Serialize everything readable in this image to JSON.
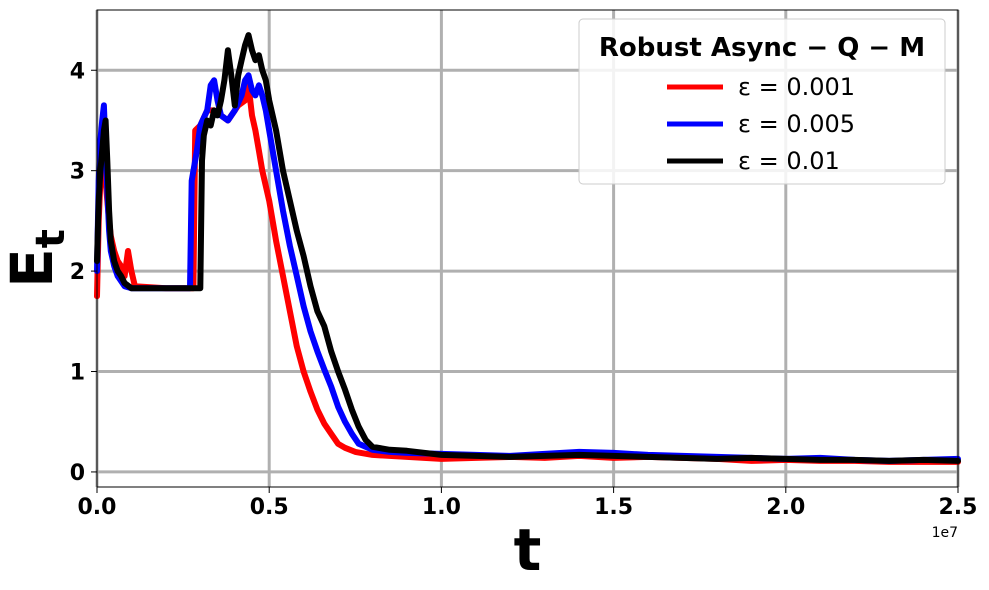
{
  "chart_data": {
    "type": "line",
    "xlabel": "t",
    "ylabel": "E",
    "ylabel_subscript": "t",
    "x_offset_label": "1e7",
    "xlim": [
      0,
      2.5
    ],
    "ylim": [
      -0.15,
      4.6
    ],
    "xticks": [
      0.0,
      0.5,
      1.0,
      1.5,
      2.0,
      2.5
    ],
    "xtick_labels": [
      "0.0",
      "0.5",
      "1.0",
      "1.5",
      "2.0",
      "2.5"
    ],
    "yticks": [
      0,
      1,
      2,
      3,
      4
    ],
    "ytick_labels": [
      "0",
      "1",
      "2",
      "3",
      "4"
    ],
    "grid": true,
    "legend_title": "Robust   Async − Q − M",
    "legend_position": "top-right",
    "series": [
      {
        "name": "ε = 0.001",
        "color": "#ff0000",
        "points": [
          [
            0.0,
            1.75
          ],
          [
            0.005,
            2.5
          ],
          [
            0.01,
            2.9
          ],
          [
            0.015,
            3.2
          ],
          [
            0.02,
            3.1
          ],
          [
            0.025,
            2.9
          ],
          [
            0.03,
            2.7
          ],
          [
            0.035,
            2.5
          ],
          [
            0.04,
            2.35
          ],
          [
            0.05,
            2.2
          ],
          [
            0.06,
            2.1
          ],
          [
            0.07,
            2.05
          ],
          [
            0.08,
            1.95
          ],
          [
            0.09,
            2.2
          ],
          [
            0.1,
            2.0
          ],
          [
            0.11,
            1.85
          ],
          [
            0.2,
            1.83
          ],
          [
            0.28,
            1.83
          ],
          [
            0.285,
            3.4
          ],
          [
            0.3,
            3.45
          ],
          [
            0.32,
            3.6
          ],
          [
            0.34,
            3.6
          ],
          [
            0.36,
            3.55
          ],
          [
            0.38,
            3.5
          ],
          [
            0.4,
            3.6
          ],
          [
            0.41,
            3.65
          ],
          [
            0.43,
            3.7
          ],
          [
            0.44,
            3.85
          ],
          [
            0.45,
            3.55
          ],
          [
            0.46,
            3.4
          ],
          [
            0.47,
            3.2
          ],
          [
            0.48,
            3.0
          ],
          [
            0.5,
            2.7
          ],
          [
            0.52,
            2.3
          ],
          [
            0.54,
            1.95
          ],
          [
            0.56,
            1.6
          ],
          [
            0.58,
            1.25
          ],
          [
            0.6,
            1.0
          ],
          [
            0.62,
            0.8
          ],
          [
            0.64,
            0.62
          ],
          [
            0.66,
            0.48
          ],
          [
            0.68,
            0.38
          ],
          [
            0.7,
            0.28
          ],
          [
            0.72,
            0.24
          ],
          [
            0.75,
            0.2
          ],
          [
            0.8,
            0.17
          ],
          [
            0.85,
            0.16
          ],
          [
            0.9,
            0.15
          ],
          [
            1.0,
            0.13
          ],
          [
            1.1,
            0.14
          ],
          [
            1.2,
            0.15
          ],
          [
            1.3,
            0.14
          ],
          [
            1.4,
            0.16
          ],
          [
            1.5,
            0.14
          ],
          [
            1.6,
            0.15
          ],
          [
            1.7,
            0.14
          ],
          [
            1.8,
            0.13
          ],
          [
            1.9,
            0.11
          ],
          [
            2.0,
            0.12
          ],
          [
            2.1,
            0.11
          ],
          [
            2.2,
            0.11
          ],
          [
            2.3,
            0.1
          ],
          [
            2.4,
            0.1
          ],
          [
            2.5,
            0.1
          ]
        ]
      },
      {
        "name": "ε = 0.005",
        "color": "#0000ff",
        "points": [
          [
            0.0,
            2.0
          ],
          [
            0.005,
            2.9
          ],
          [
            0.01,
            3.3
          ],
          [
            0.015,
            3.5
          ],
          [
            0.02,
            3.65
          ],
          [
            0.025,
            3.2
          ],
          [
            0.03,
            2.8
          ],
          [
            0.035,
            2.4
          ],
          [
            0.04,
            2.2
          ],
          [
            0.05,
            2.05
          ],
          [
            0.06,
            1.95
          ],
          [
            0.07,
            1.9
          ],
          [
            0.08,
            1.85
          ],
          [
            0.1,
            1.83
          ],
          [
            0.2,
            1.83
          ],
          [
            0.27,
            1.83
          ],
          [
            0.275,
            2.9
          ],
          [
            0.29,
            3.2
          ],
          [
            0.3,
            3.45
          ],
          [
            0.32,
            3.6
          ],
          [
            0.33,
            3.85
          ],
          [
            0.34,
            3.9
          ],
          [
            0.35,
            3.7
          ],
          [
            0.36,
            3.55
          ],
          [
            0.38,
            3.5
          ],
          [
            0.4,
            3.6
          ],
          [
            0.42,
            3.75
          ],
          [
            0.43,
            3.9
          ],
          [
            0.44,
            3.95
          ],
          [
            0.45,
            3.8
          ],
          [
            0.46,
            3.75
          ],
          [
            0.47,
            3.85
          ],
          [
            0.48,
            3.75
          ],
          [
            0.49,
            3.6
          ],
          [
            0.5,
            3.4
          ],
          [
            0.52,
            3.0
          ],
          [
            0.54,
            2.6
          ],
          [
            0.56,
            2.25
          ],
          [
            0.58,
            1.95
          ],
          [
            0.6,
            1.65
          ],
          [
            0.62,
            1.4
          ],
          [
            0.64,
            1.2
          ],
          [
            0.66,
            1.02
          ],
          [
            0.68,
            0.85
          ],
          [
            0.7,
            0.65
          ],
          [
            0.72,
            0.5
          ],
          [
            0.74,
            0.38
          ],
          [
            0.76,
            0.28
          ],
          [
            0.8,
            0.22
          ],
          [
            0.85,
            0.2
          ],
          [
            0.9,
            0.19
          ],
          [
            1.0,
            0.18
          ],
          [
            1.1,
            0.17
          ],
          [
            1.2,
            0.16
          ],
          [
            1.3,
            0.18
          ],
          [
            1.4,
            0.2
          ],
          [
            1.5,
            0.19
          ],
          [
            1.6,
            0.17
          ],
          [
            1.7,
            0.16
          ],
          [
            1.8,
            0.15
          ],
          [
            1.9,
            0.14
          ],
          [
            2.0,
            0.13
          ],
          [
            2.1,
            0.14
          ],
          [
            2.2,
            0.12
          ],
          [
            2.3,
            0.11
          ],
          [
            2.4,
            0.12
          ],
          [
            2.5,
            0.13
          ]
        ]
      },
      {
        "name": "ε = 0.01",
        "color": "#000000",
        "points": [
          [
            0.0,
            2.1
          ],
          [
            0.005,
            2.7
          ],
          [
            0.01,
            3.0
          ],
          [
            0.015,
            3.2
          ],
          [
            0.02,
            3.4
          ],
          [
            0.025,
            3.5
          ],
          [
            0.03,
            3.1
          ],
          [
            0.035,
            2.6
          ],
          [
            0.04,
            2.3
          ],
          [
            0.05,
            2.1
          ],
          [
            0.06,
            2.0
          ],
          [
            0.07,
            1.95
          ],
          [
            0.08,
            1.88
          ],
          [
            0.1,
            1.83
          ],
          [
            0.2,
            1.83
          ],
          [
            0.3,
            1.83
          ],
          [
            0.305,
            3.1
          ],
          [
            0.31,
            3.35
          ],
          [
            0.32,
            3.5
          ],
          [
            0.33,
            3.45
          ],
          [
            0.34,
            3.6
          ],
          [
            0.35,
            3.55
          ],
          [
            0.36,
            3.7
          ],
          [
            0.37,
            3.9
          ],
          [
            0.38,
            4.2
          ],
          [
            0.39,
            3.95
          ],
          [
            0.4,
            3.65
          ],
          [
            0.41,
            3.95
          ],
          [
            0.42,
            4.1
          ],
          [
            0.43,
            4.25
          ],
          [
            0.44,
            4.35
          ],
          [
            0.45,
            4.2
          ],
          [
            0.46,
            4.1
          ],
          [
            0.47,
            4.15
          ],
          [
            0.48,
            4.0
          ],
          [
            0.49,
            3.9
          ],
          [
            0.5,
            3.7
          ],
          [
            0.52,
            3.4
          ],
          [
            0.54,
            3.0
          ],
          [
            0.56,
            2.7
          ],
          [
            0.58,
            2.4
          ],
          [
            0.6,
            2.15
          ],
          [
            0.62,
            1.85
          ],
          [
            0.64,
            1.6
          ],
          [
            0.66,
            1.45
          ],
          [
            0.68,
            1.2
          ],
          [
            0.7,
            1.0
          ],
          [
            0.72,
            0.82
          ],
          [
            0.74,
            0.62
          ],
          [
            0.76,
            0.45
          ],
          [
            0.78,
            0.32
          ],
          [
            0.8,
            0.25
          ],
          [
            0.85,
            0.22
          ],
          [
            0.9,
            0.21
          ],
          [
            1.0,
            0.17
          ],
          [
            1.1,
            0.16
          ],
          [
            1.2,
            0.15
          ],
          [
            1.3,
            0.16
          ],
          [
            1.4,
            0.17
          ],
          [
            1.5,
            0.16
          ],
          [
            1.6,
            0.15
          ],
          [
            1.7,
            0.14
          ],
          [
            1.8,
            0.13
          ],
          [
            1.9,
            0.14
          ],
          [
            2.0,
            0.13
          ],
          [
            2.1,
            0.12
          ],
          [
            2.2,
            0.12
          ],
          [
            2.3,
            0.11
          ],
          [
            2.4,
            0.12
          ],
          [
            2.5,
            0.11
          ]
        ]
      }
    ]
  }
}
